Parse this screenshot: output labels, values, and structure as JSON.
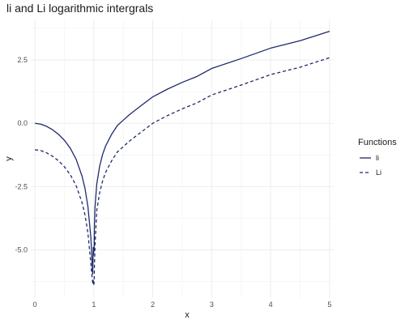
{
  "chart_data": {
    "type": "line",
    "title": "li and Li logarithmic intergrals",
    "xlabel": "x",
    "ylabel": "y",
    "xlim": [
      -0.07,
      5.07
    ],
    "ylim": [
      -6.9,
      4.1
    ],
    "x_ticks": [
      0,
      1,
      2,
      3,
      4,
      5
    ],
    "y_ticks": [
      -5.0,
      -2.5,
      0.0,
      2.5
    ],
    "x_tick_labels": [
      "0",
      "1",
      "2",
      "3",
      "4",
      "5"
    ],
    "y_tick_labels": [
      "-5.0",
      "-2.5",
      "0.0",
      "2.5"
    ],
    "grid": true,
    "legend": {
      "title": "Functions",
      "position": "right"
    },
    "series": [
      {
        "name": "li",
        "line_style": "solid",
        "color": "#1f2a6b",
        "x": [
          0,
          0.1,
          0.2,
          0.3,
          0.4,
          0.5,
          0.6,
          0.7,
          0.8,
          0.85,
          0.9,
          0.95,
          0.98,
          0.99,
          0.995,
          1.005,
          1.01,
          1.02,
          1.05,
          1.1,
          1.15,
          1.2,
          1.3,
          1.4,
          1.5,
          1.6,
          1.8,
          2.0,
          2.25,
          2.5,
          2.75,
          3.0,
          3.5,
          4.0,
          4.5,
          5.0
        ],
        "y": [
          0.0,
          -0.032,
          -0.122,
          -0.256,
          -0.435,
          -0.669,
          -0.982,
          -1.421,
          -2.087,
          -2.573,
          -3.295,
          -4.525,
          -5.95,
          -4.9,
          -5.2,
          -4.9,
          -4.0,
          -3.3,
          -2.387,
          -1.676,
          -1.219,
          -0.893,
          -0.442,
          -0.084,
          0.125,
          0.335,
          0.694,
          1.045,
          1.35,
          1.616,
          1.85,
          2.164,
          2.555,
          2.967,
          3.26,
          3.634
        ]
      },
      {
        "name": "Li",
        "line_style": "dashed",
        "color": "#1f2a6b",
        "x": [
          0,
          0.1,
          0.2,
          0.3,
          0.4,
          0.5,
          0.6,
          0.7,
          0.8,
          0.85,
          0.9,
          0.95,
          0.98,
          0.99,
          0.995,
          1.005,
          1.01,
          1.02,
          1.05,
          1.1,
          1.15,
          1.2,
          1.3,
          1.4,
          1.5,
          1.6,
          1.8,
          2.0,
          2.25,
          2.5,
          2.75,
          3.0,
          3.5,
          4.0,
          4.5,
          5.0
        ],
        "y": [
          -1.045,
          -1.077,
          -1.167,
          -1.301,
          -1.48,
          -1.714,
          -2.027,
          -2.466,
          -3.132,
          -3.618,
          -4.34,
          -5.57,
          -6.3,
          -6.2,
          -6.4,
          -6.3,
          -5.6,
          -4.8,
          -3.432,
          -2.721,
          -2.264,
          -1.938,
          -1.487,
          -1.129,
          -0.92,
          -0.71,
          -0.351,
          0.0,
          0.305,
          0.571,
          0.805,
          1.119,
          1.51,
          1.922,
          2.215,
          2.589
        ]
      }
    ]
  }
}
